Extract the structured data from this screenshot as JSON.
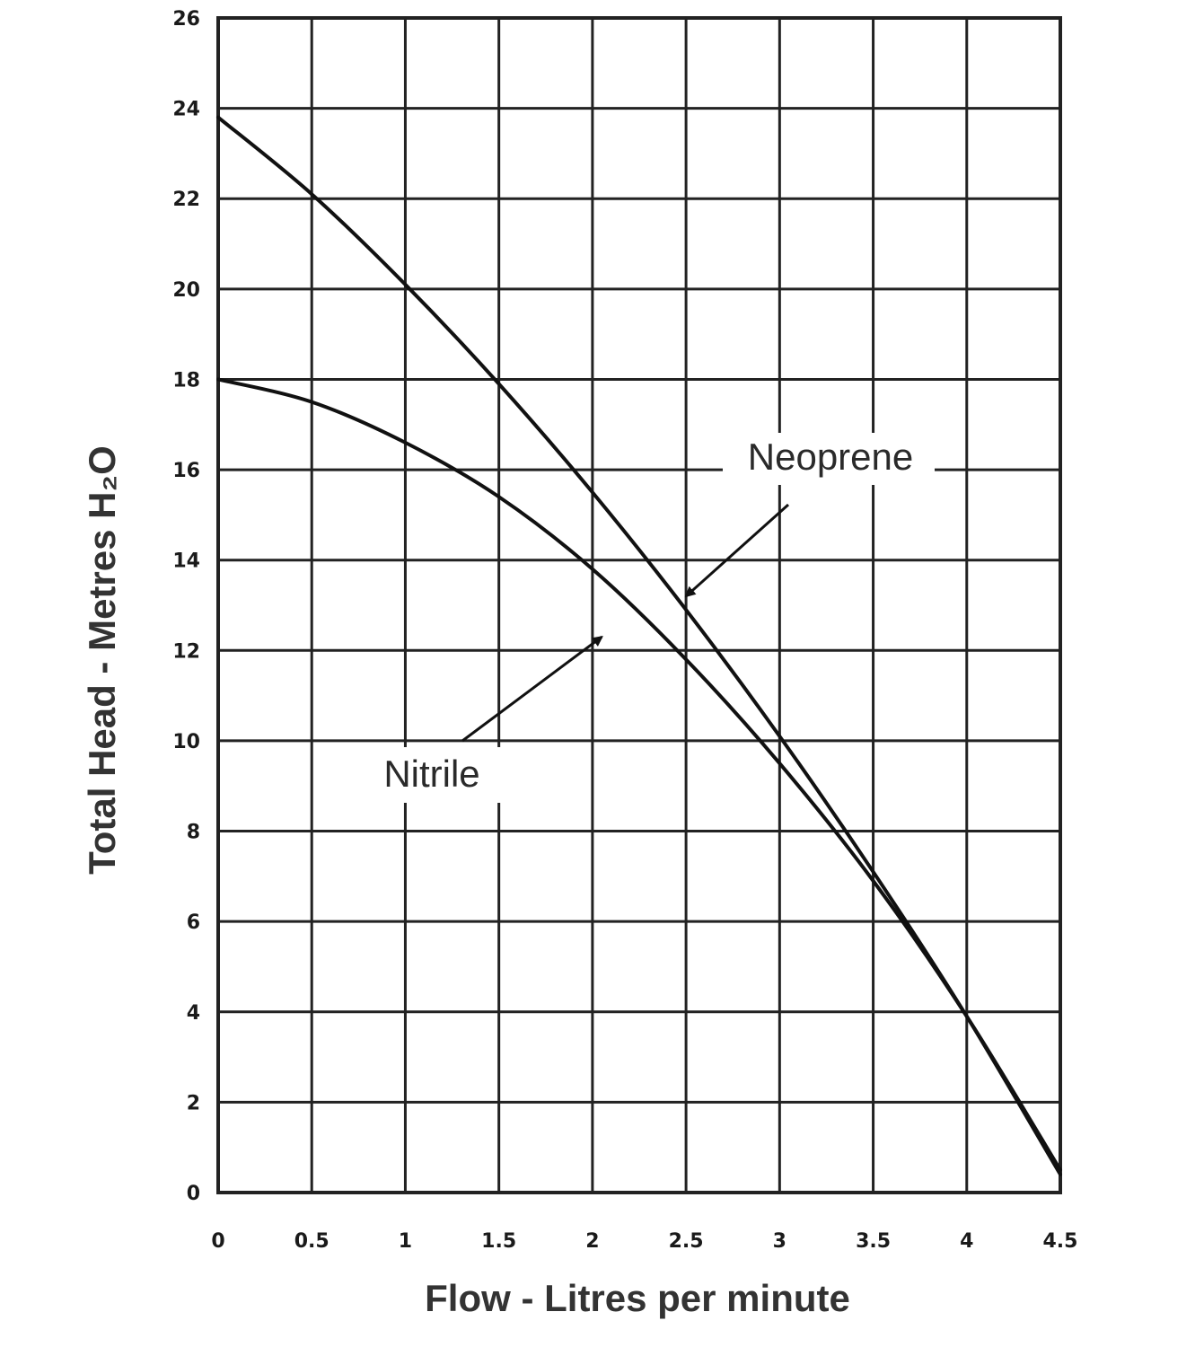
{
  "chart_data": {
    "type": "line",
    "title": "",
    "xlabel": "Flow - Litres per minute",
    "ylabel": "Total Head - Metres H₂O",
    "xlim": [
      0,
      4.5
    ],
    "ylim": [
      0,
      26
    ],
    "x_ticks": [
      "0",
      "0.5",
      "1",
      "1.5",
      "2",
      "2.5",
      "3",
      "3.5",
      "4",
      "4.5"
    ],
    "y_ticks": [
      "0",
      "2",
      "4",
      "6",
      "8",
      "10",
      "12",
      "14",
      "16",
      "18",
      "20",
      "22",
      "24",
      "26"
    ],
    "grid": true,
    "series": [
      {
        "name": "Neoprene",
        "x": [
          0,
          0.5,
          1,
          1.5,
          2,
          2.5,
          3,
          3.5,
          4,
          4.5
        ],
        "y": [
          23.8,
          22.1,
          20.1,
          17.9,
          15.5,
          12.9,
          10.1,
          7.1,
          3.9,
          0.4
        ]
      },
      {
        "name": "Nitrile",
        "x": [
          0,
          0.5,
          1,
          1.5,
          2,
          2.5,
          3,
          3.5,
          4,
          4.5
        ],
        "y": [
          18.0,
          17.5,
          16.6,
          15.4,
          13.8,
          11.8,
          9.5,
          6.9,
          3.9,
          0.5
        ]
      }
    ],
    "annotations": [
      {
        "text": "Neoprene",
        "series": "Neoprene",
        "arrow_target": [
          2.5,
          13.2
        ]
      },
      {
        "text": "Nitrile",
        "series": "Nitrile",
        "arrow_target": [
          2.05,
          12.3
        ]
      }
    ],
    "colors": {
      "line": "#111111",
      "grid": "#222222",
      "text": "#222222"
    }
  }
}
